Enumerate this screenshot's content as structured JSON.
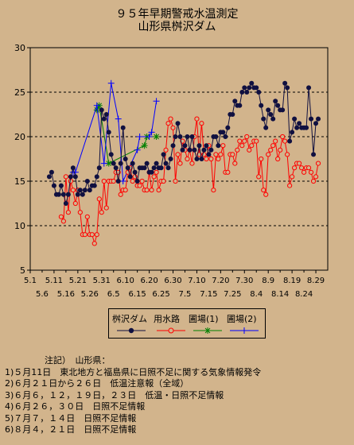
{
  "title": "９５年早期警戒水温測定",
  "subtitle": "山形県桝沢ダム",
  "colors": {
    "background": "#d2b48c",
    "dam": "#101040",
    "canal": "#ff0000",
    "field1": "#008000",
    "field2": "#0000ff"
  },
  "legend": {
    "dam": "桝沢ダム",
    "canal": "用水路",
    "field1": "圃場(1)",
    "field2": "圃場(2)"
  },
  "chart_data": {
    "type": "line",
    "title": "９５年早期警戒水温測定",
    "subtitle": "山形県桝沢ダム",
    "ylim": [
      5,
      30
    ],
    "yticks": [
      5,
      10,
      15,
      20,
      25,
      30
    ],
    "xlim": [
      0,
      125
    ],
    "xticks_row1": [
      {
        "x": 0,
        "label": "5.1"
      },
      {
        "x": 10,
        "label": "5.11"
      },
      {
        "x": 20,
        "label": "5.21"
      },
      {
        "x": 30,
        "label": "5.31"
      },
      {
        "x": 40,
        "label": "6.10"
      },
      {
        "x": 50,
        "label": "6.20"
      },
      {
        "x": 60,
        "label": "6.30"
      },
      {
        "x": 70,
        "label": "7.10"
      },
      {
        "x": 80,
        "label": "7.20"
      },
      {
        "x": 90,
        "label": "7.30"
      },
      {
        "x": 100,
        "label": "8.9"
      },
      {
        "x": 110,
        "label": "8.19"
      },
      {
        "x": 120,
        "label": "8.29"
      }
    ],
    "xticks_row2": [
      {
        "x": 5,
        "label": "5.6"
      },
      {
        "x": 15,
        "label": "5.16"
      },
      {
        "x": 25,
        "label": "5.26"
      },
      {
        "x": 35,
        "label": "6.5"
      },
      {
        "x": 45,
        "label": "6.15"
      },
      {
        "x": 55,
        "label": "6.25"
      },
      {
        "x": 65,
        "label": "7.5"
      },
      {
        "x": 75,
        "label": "7.15"
      },
      {
        "x": 85,
        "label": "7.25"
      },
      {
        "x": 95,
        "label": "8.4"
      },
      {
        "x": 105,
        "label": "8.14"
      },
      {
        "x": 115,
        "label": "8.24"
      }
    ],
    "grid": "horizontal-dashed",
    "series": [
      {
        "name": "桝沢ダム",
        "marker": "dot",
        "points": [
          [
            8,
            15.5
          ],
          [
            9,
            16
          ],
          [
            10,
            14.5
          ],
          [
            11,
            13.5
          ],
          [
            12,
            13.5
          ],
          [
            13,
            14.5
          ],
          [
            14,
            13.5
          ],
          [
            15,
            12.5
          ],
          [
            16,
            13.5
          ],
          [
            17,
            15.5
          ],
          [
            18,
            16.5
          ],
          [
            19,
            15.5
          ],
          [
            20,
            13.5
          ],
          [
            21,
            14
          ],
          [
            22,
            13.5
          ],
          [
            23,
            14
          ],
          [
            24,
            15
          ],
          [
            25,
            14
          ],
          [
            26,
            14.5
          ],
          [
            27,
            14.5
          ],
          [
            28,
            15.5
          ],
          [
            29,
            16.5
          ],
          [
            30,
            23
          ],
          [
            31,
            22
          ],
          [
            32,
            22.5
          ],
          [
            33,
            20.5
          ],
          [
            34,
            18
          ],
          [
            35,
            17
          ],
          [
            36,
            16.5
          ],
          [
            37,
            15
          ],
          [
            38,
            17
          ],
          [
            39,
            21
          ],
          [
            40,
            17.5
          ],
          [
            41,
            16.5
          ],
          [
            42,
            15.5
          ],
          [
            43,
            17
          ],
          [
            44,
            16
          ],
          [
            45,
            15
          ],
          [
            46,
            16.5
          ],
          [
            47,
            16.5
          ],
          [
            48,
            16.5
          ],
          [
            49,
            17
          ],
          [
            50,
            16
          ],
          [
            51,
            16
          ],
          [
            52,
            16.5
          ],
          [
            53,
            17
          ],
          [
            54,
            16.5
          ],
          [
            55,
            16.5
          ],
          [
            56,
            18
          ],
          [
            57,
            17
          ],
          [
            58,
            16.5
          ],
          [
            59,
            17.5
          ],
          [
            60,
            19
          ],
          [
            61,
            20
          ],
          [
            62,
            21.5
          ],
          [
            63,
            20
          ],
          [
            64,
            18.5
          ],
          [
            65,
            19
          ],
          [
            66,
            20
          ],
          [
            67,
            18.5
          ],
          [
            68,
            20
          ],
          [
            69,
            18.5
          ],
          [
            70,
            17.5
          ],
          [
            71,
            19
          ],
          [
            72,
            17.5
          ],
          [
            73,
            18.5
          ],
          [
            74,
            19
          ],
          [
            75,
            18
          ],
          [
            76,
            18.5
          ],
          [
            77,
            20
          ],
          [
            78,
            20
          ],
          [
            79,
            19
          ],
          [
            80,
            20.5
          ],
          [
            81,
            20.5
          ],
          [
            82,
            20
          ],
          [
            83,
            21
          ],
          [
            84,
            22.5
          ],
          [
            85,
            22.5
          ],
          [
            86,
            24
          ],
          [
            87,
            23.5
          ],
          [
            88,
            23.5
          ],
          [
            89,
            25
          ],
          [
            90,
            25.5
          ],
          [
            91,
            25
          ],
          [
            92,
            25.5
          ],
          [
            93,
            26
          ],
          [
            94,
            25.5
          ],
          [
            95,
            25.5
          ],
          [
            96,
            25
          ],
          [
            97,
            23.5
          ],
          [
            98,
            22
          ],
          [
            99,
            21
          ],
          [
            100,
            23
          ],
          [
            101,
            22.5
          ],
          [
            102,
            22
          ],
          [
            103,
            24
          ],
          [
            104,
            23.5
          ],
          [
            105,
            23
          ],
          [
            106,
            23
          ],
          [
            107,
            26
          ],
          [
            108,
            25.5
          ],
          [
            109,
            19.5
          ],
          [
            110,
            20.5
          ],
          [
            111,
            22
          ],
          [
            112,
            21
          ],
          [
            113,
            21.5
          ],
          [
            114,
            21
          ],
          [
            115,
            21
          ],
          [
            116,
            21
          ],
          [
            117,
            25.5
          ],
          [
            118,
            22
          ],
          [
            119,
            18
          ],
          [
            120,
            21.5
          ],
          [
            121,
            22
          ]
        ]
      },
      {
        "name": "用水路",
        "marker": "circle",
        "points": [
          [
            13,
            11
          ],
          [
            14,
            10.5
          ],
          [
            15,
            15.5
          ],
          [
            16,
            11.5
          ],
          [
            17,
            15
          ],
          [
            18,
            14
          ],
          [
            19,
            12.5
          ],
          [
            20,
            14
          ],
          [
            21,
            11.5
          ],
          [
            22,
            9
          ],
          [
            23,
            9
          ],
          [
            24,
            11
          ],
          [
            25,
            9
          ],
          [
            26,
            9
          ],
          [
            27,
            8
          ],
          [
            28,
            9
          ],
          [
            29,
            13
          ],
          [
            30,
            11.5
          ],
          [
            31,
            15
          ],
          [
            32,
            12
          ],
          [
            33,
            15
          ],
          [
            34,
            15
          ],
          [
            35,
            15
          ],
          [
            36,
            16
          ],
          [
            37,
            16
          ],
          [
            38,
            13.5
          ],
          [
            39,
            14
          ],
          [
            40,
            14
          ],
          [
            41,
            16
          ],
          [
            42,
            16.5
          ],
          [
            43,
            15
          ],
          [
            44,
            15.5
          ],
          [
            45,
            14.5
          ],
          [
            46,
            14.5
          ],
          [
            47,
            15
          ],
          [
            48,
            14
          ],
          [
            49,
            14
          ],
          [
            50,
            16
          ],
          [
            51,
            14
          ],
          [
            52,
            15.5
          ],
          [
            53,
            16
          ],
          [
            54,
            14
          ],
          [
            55,
            15
          ],
          [
            56,
            15
          ],
          [
            57,
            18.5
          ],
          [
            58,
            21.5
          ],
          [
            59,
            22
          ],
          [
            60,
            21
          ],
          [
            61,
            15
          ],
          [
            62,
            18
          ],
          [
            63,
            17
          ],
          [
            64,
            19.5
          ],
          [
            65,
            18.5
          ],
          [
            66,
            17.5
          ],
          [
            67,
            18.5
          ],
          [
            68,
            17
          ],
          [
            69,
            20
          ],
          [
            70,
            22
          ],
          [
            71,
            18
          ],
          [
            72,
            21.5
          ],
          [
            73,
            18
          ],
          [
            74,
            17.5
          ],
          [
            75,
            19
          ],
          [
            76,
            17.5
          ],
          [
            77,
            14
          ],
          [
            78,
            18
          ],
          [
            79,
            17.5
          ],
          [
            80,
            18
          ],
          [
            81,
            19
          ],
          [
            82,
            16
          ],
          [
            83,
            16
          ],
          [
            84,
            18
          ],
          [
            85,
            18
          ],
          [
            86,
            17
          ],
          [
            87,
            18.5
          ],
          [
            88,
            19.5
          ],
          [
            89,
            19
          ],
          [
            90,
            19.5
          ],
          [
            91,
            20
          ],
          [
            92,
            18.5
          ],
          [
            93,
            19
          ],
          [
            94,
            19.5
          ],
          [
            95,
            19.5
          ],
          [
            96,
            15.5
          ],
          [
            97,
            17.5
          ],
          [
            98,
            14
          ],
          [
            99,
            13.5
          ],
          [
            100,
            18
          ],
          [
            101,
            18.5
          ],
          [
            102,
            19
          ],
          [
            103,
            19.5
          ],
          [
            104,
            17.5
          ],
          [
            105,
            18.5
          ],
          [
            106,
            20
          ],
          [
            107,
            19.5
          ],
          [
            108,
            18
          ],
          [
            109,
            14.5
          ],
          [
            110,
            15.5
          ],
          [
            111,
            16.5
          ],
          [
            112,
            17
          ],
          [
            113,
            17
          ],
          [
            114,
            16.5
          ],
          [
            115,
            16
          ],
          [
            116,
            16.5
          ],
          [
            117,
            16.5
          ],
          [
            118,
            16
          ],
          [
            119,
            15
          ],
          [
            120,
            15.5
          ],
          [
            121,
            17
          ]
        ]
      },
      {
        "name": "圃場(1)",
        "marker": "star",
        "points": [
          [
            28,
            23
          ],
          [
            29,
            23.5
          ],
          [
            33,
            17
          ],
          [
            48,
            19
          ],
          [
            49,
            20
          ],
          [
            53,
            20
          ]
        ]
      },
      {
        "name": "圃場(2)",
        "marker": "plus",
        "points": [
          [
            18,
            16
          ],
          [
            19,
            16
          ],
          [
            28,
            23.5
          ],
          [
            31,
            17
          ],
          [
            34,
            26
          ],
          [
            37,
            22
          ],
          [
            39,
            15
          ],
          [
            45,
            18.5
          ],
          [
            46,
            20
          ],
          [
            50,
            20
          ],
          [
            51,
            20.5
          ],
          [
            53,
            24
          ]
        ]
      }
    ]
  },
  "notes": {
    "heading": "注記）　山形県：",
    "lines": [
      "1)５月11日　東北地方と福島県に日照不足に関する気象情報発令",
      "2)６月２１日から２６日　低温注意報（全域）",
      "3)６月６，１２，１９日，２３日　低温・日照不足情報",
      "4)６月２６，３０日　日照不足情報",
      "5)７月７，１４日　日照不足情報",
      "6)８月４，２１日　日照不足情報"
    ]
  }
}
